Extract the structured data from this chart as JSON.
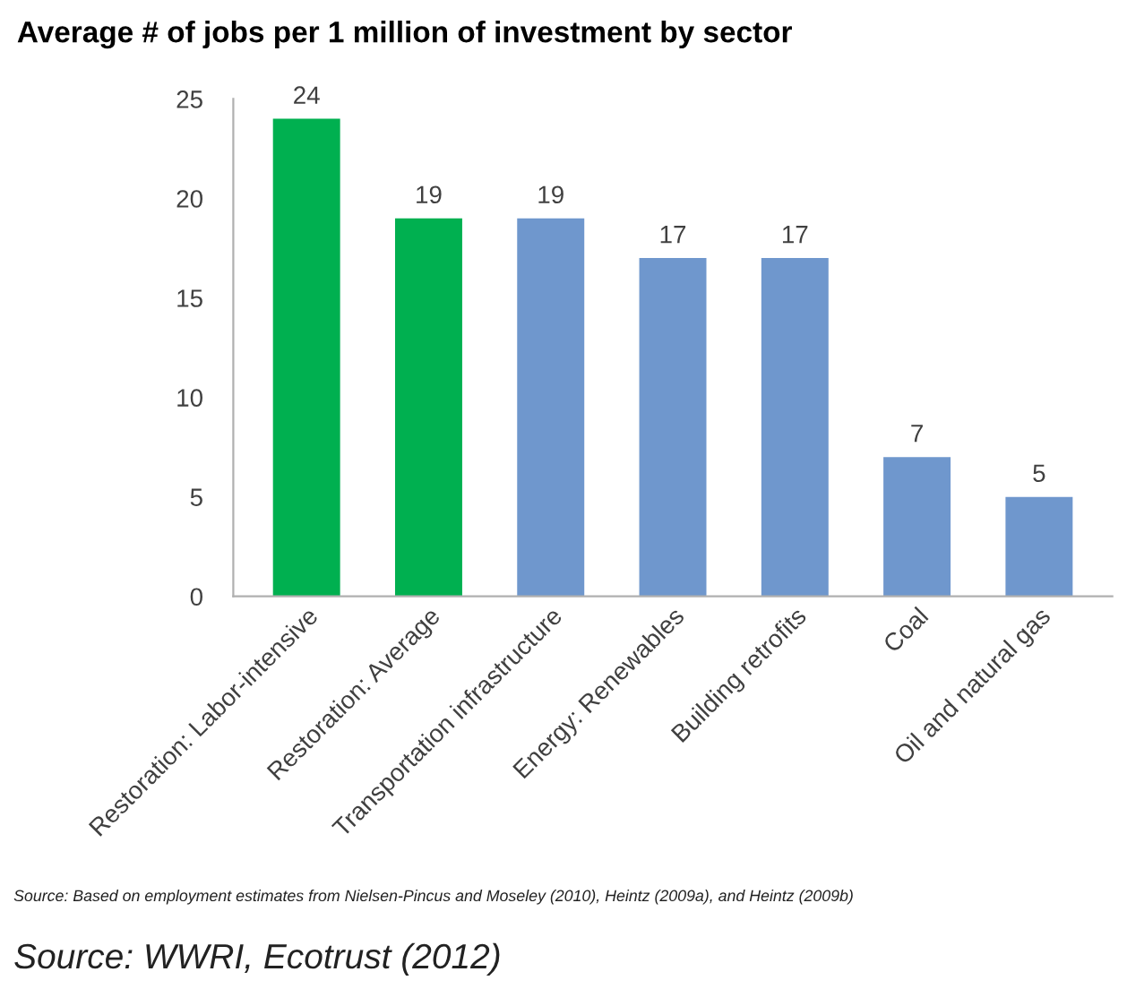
{
  "chart_data": {
    "type": "bar",
    "title": "Average # of jobs per 1 million of investment by sector",
    "categories": [
      "Restoration: Labor-intensive",
      "Restoration: Average",
      "Transportation infrastructure",
      "Energy: Renewables",
      "Building retrofits",
      "Coal",
      "Oil and natural gas"
    ],
    "values": [
      24,
      19,
      19,
      17,
      17,
      7,
      5
    ],
    "colors": [
      "#00b050",
      "#00b050",
      "#6f97cd",
      "#6f97cd",
      "#6f97cd",
      "#6f97cd",
      "#6f97cd"
    ],
    "ylim": [
      0,
      25
    ],
    "yticks": [
      0,
      5,
      10,
      15,
      20,
      25
    ],
    "grid": false,
    "data_labels": true,
    "annotations": [
      "Source: Based on employment estimates from Nielsen-Pincus and Moseley (2010), Heintz (2009a), and Heintz (2009b)",
      "Source: WWRI, Ecotrust (2012)"
    ]
  }
}
